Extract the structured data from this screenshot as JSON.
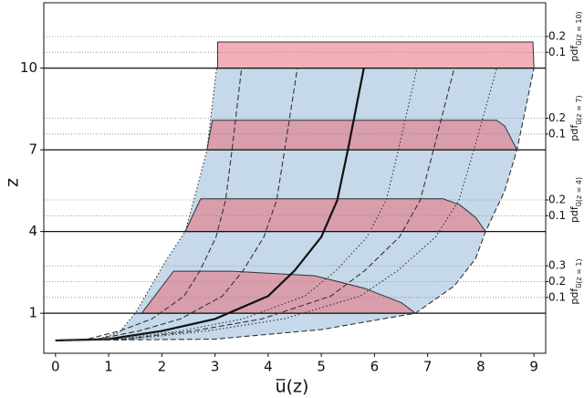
{
  "chart_data": {
    "type": "line",
    "xlabel": "u̅(z)",
    "ylabel": "z",
    "xlim": [
      -0.22,
      9.22
    ],
    "ylim": [
      -0.47,
      12.4
    ],
    "xticks": [
      0,
      1,
      2,
      3,
      4,
      5,
      6,
      7,
      8,
      9
    ],
    "yticks": [
      1,
      4,
      7,
      10
    ],
    "region_color": "#c5d9ea",
    "pdf_color": "rgba(232,110,120,0.55)",
    "series": [
      {
        "style": "dotted",
        "color": "#333333",
        "x": [
          0,
          0.8,
          1.2,
          1.5,
          1.8,
          2.1,
          2.44,
          2.65,
          2.85,
          3.03
        ],
        "values": [
          0,
          0.05,
          0.3,
          1,
          2,
          3,
          4,
          5.5,
          7,
          10
        ]
      },
      {
        "style": "dashed",
        "color": "#333333",
        "x": [
          0,
          0.6,
          1.21,
          1.81,
          2.42,
          2.72,
          3.02,
          3.2,
          3.32,
          3.5
        ],
        "values": [
          0,
          0.05,
          0.35,
          0.79,
          1.63,
          2.57,
          3.8,
          5.15,
          7,
          10
        ]
      },
      {
        "style": "dashed",
        "color": "#333333",
        "x": [
          0,
          0.78,
          1.57,
          2.35,
          3.14,
          3.53,
          3.92,
          4.16,
          4.31,
          4.55
        ],
        "values": [
          0,
          0.05,
          0.35,
          0.79,
          1.63,
          2.57,
          3.8,
          5.15,
          7,
          10
        ]
      },
      {
        "style": "solid",
        "color": "#111111",
        "x": [
          0,
          1,
          2,
          3,
          4,
          4.5,
          5,
          5.3,
          5.5,
          5.8
        ],
        "values": [
          0,
          0.05,
          0.35,
          0.79,
          1.63,
          2.57,
          3.8,
          5.15,
          7,
          10
        ]
      },
      {
        "style": "dotted",
        "color": "#333333",
        "x": [
          0,
          1.17,
          2.35,
          3.52,
          4.69,
          5.28,
          5.86,
          6.22,
          6.45,
          6.8
        ],
        "values": [
          0,
          0.05,
          0.35,
          0.79,
          1.63,
          2.57,
          3.8,
          5.15,
          7,
          10
        ]
      },
      {
        "style": "dashed",
        "color": "#333333",
        "x": [
          0,
          1.29,
          2.59,
          3.88,
          5.18,
          5.82,
          6.47,
          6.86,
          7.11,
          7.5
        ],
        "values": [
          0,
          0.05,
          0.35,
          0.79,
          1.63,
          2.57,
          3.8,
          5.15,
          7,
          10
        ]
      },
      {
        "style": "dotted",
        "color": "#333333",
        "x": [
          0,
          1.43,
          2.86,
          4.29,
          5.73,
          6.44,
          7.15,
          7.59,
          7.87,
          8.3
        ],
        "values": [
          0,
          0.05,
          0.35,
          0.79,
          1.63,
          2.57,
          3.8,
          5.15,
          7,
          10
        ]
      },
      {
        "style": "dashed",
        "color": "#333333",
        "x": [
          0,
          3,
          5,
          6.77,
          7.5,
          7.9,
          8.09,
          8.45,
          8.68,
          9.0
        ],
        "values": [
          0,
          0.05,
          0.4,
          1,
          2,
          3,
          4,
          5.5,
          7,
          10
        ]
      }
    ],
    "levels": [
      {
        "z": 1,
        "label": "pdf",
        "subscript": "u̅(z = 1)",
        "pdf_ticks": [
          0.1,
          0.2,
          0.3
        ],
        "x": [
          1.62,
          2.22,
          3.33,
          4.88,
          5.82,
          6.51,
          6.77
        ],
        "pdf": [
          0,
          0.266,
          0.266,
          0.237,
          0.157,
          0.066,
          0
        ]
      },
      {
        "z": 4,
        "label": "pdf",
        "subscript": "u̅(z = 4)",
        "pdf_ticks": [
          0.1,
          0.2
        ],
        "x": [
          2.44,
          2.73,
          7.29,
          7.6,
          7.9,
          8.09
        ],
        "pdf": [
          0,
          0.207,
          0.207,
          0.17,
          0.09,
          0
        ]
      },
      {
        "z": 7,
        "label": "pdf",
        "subscript": "u̅(z = 7)",
        "pdf_ticks": [
          0.1,
          0.2
        ],
        "x": [
          2.85,
          2.95,
          8.3,
          8.45,
          8.68
        ],
        "pdf": [
          0,
          0.187,
          0.187,
          0.15,
          0
        ]
      },
      {
        "z": 10,
        "label": "pdf",
        "subscript": "u̅(z = 10)",
        "pdf_ticks": [
          0.1,
          0.2
        ],
        "x": [
          3.05,
          3.05,
          8.98,
          9.0
        ],
        "pdf": [
          0,
          0.165,
          0.165,
          0
        ]
      }
    ]
  }
}
